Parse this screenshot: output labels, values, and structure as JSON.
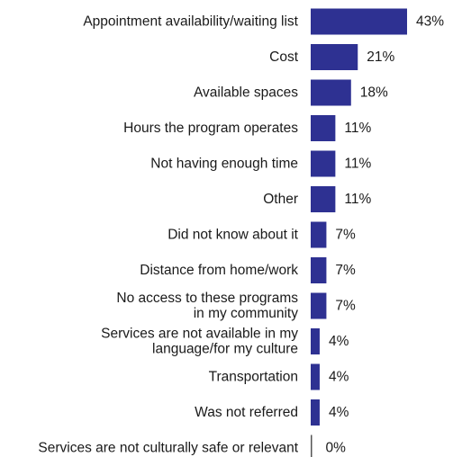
{
  "chart_data": {
    "type": "bar",
    "orientation": "horizontal",
    "bar_color": "#2e3192",
    "categories": [
      [
        "Appointment availability/waiting list"
      ],
      [
        "Cost"
      ],
      [
        "Available spaces"
      ],
      [
        "Hours the program operates"
      ],
      [
        "Not having enough time"
      ],
      [
        "Other"
      ],
      [
        "Did not know about it"
      ],
      [
        "Distance from home/work"
      ],
      [
        "No access to these programs",
        "in my community"
      ],
      [
        "Services are not available in my",
        "language/for my culture"
      ],
      [
        "Transportation"
      ],
      [
        "Was not referred"
      ],
      [
        "Services are not culturally safe or relevant"
      ]
    ],
    "values": [
      43,
      21,
      18,
      11,
      11,
      11,
      7,
      7,
      7,
      4,
      4,
      4,
      0
    ],
    "value_labels": [
      "43%",
      "21%",
      "18%",
      "11%",
      "11%",
      "11%",
      "7%",
      "7%",
      "7%",
      "4%",
      "4%",
      "4%",
      "0%"
    ],
    "xlim": [
      0,
      43
    ],
    "grid": false,
    "legend": "none"
  }
}
